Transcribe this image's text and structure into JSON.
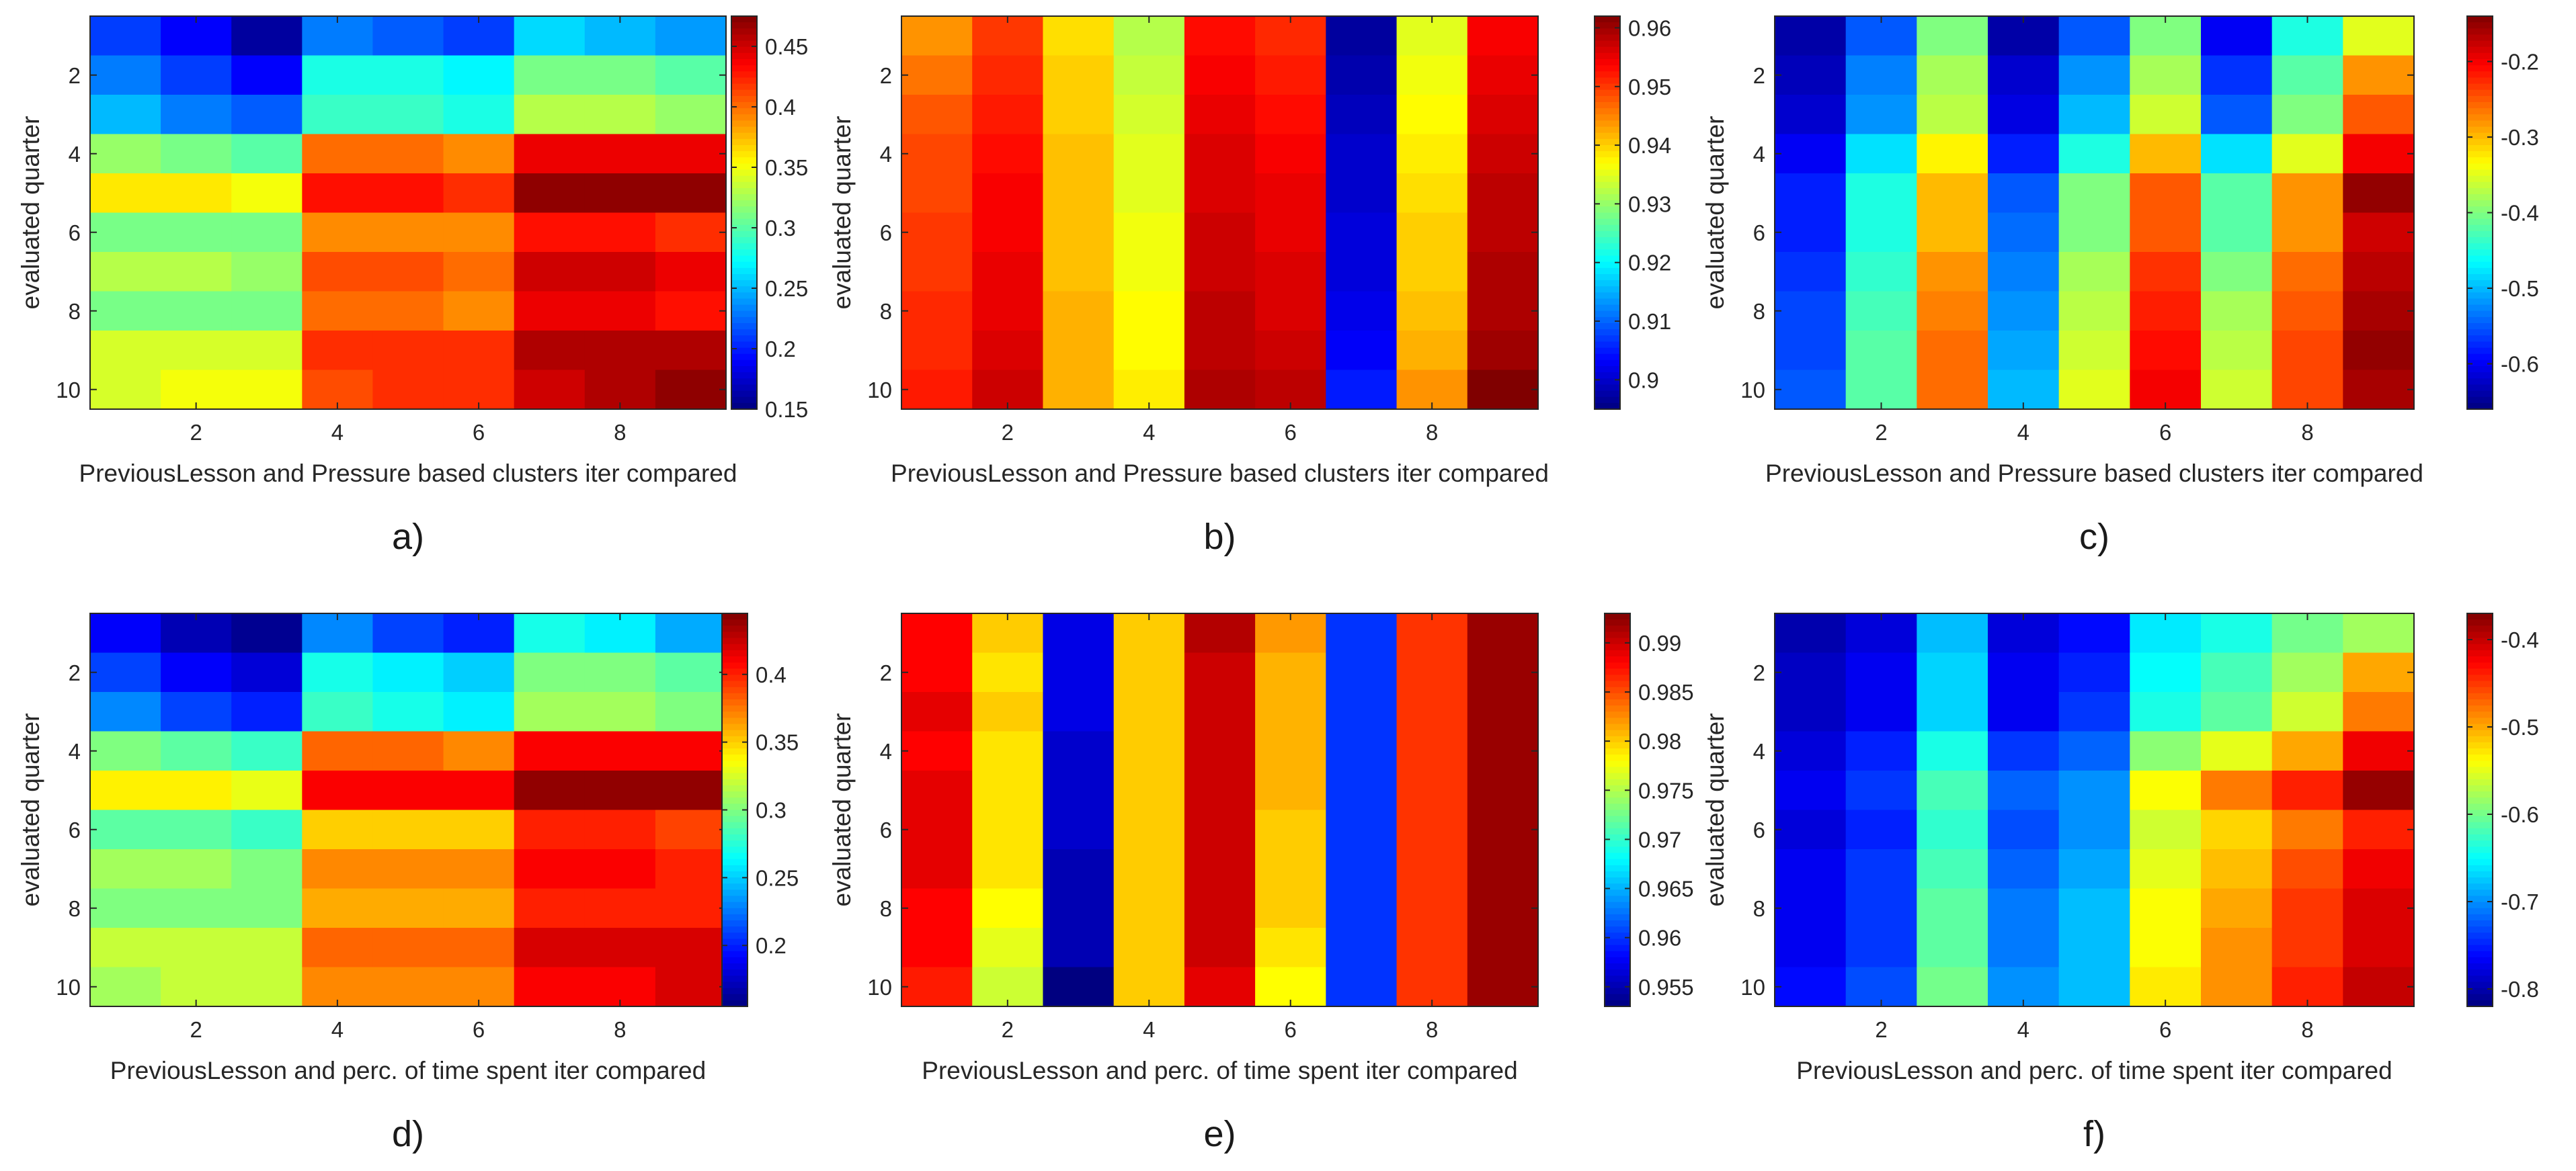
{
  "figure": {
    "title": ""
  },
  "chart_data": [
    {
      "panel_letter": "a)",
      "type": "heatmap",
      "xlabel": "PreviousLesson and Pressure based clusters iter compared",
      "ylabel": "evaluated quarter",
      "x_ticks": [
        "2",
        "4",
        "6",
        "8"
      ],
      "y_ticks": [
        "2",
        "4",
        "6",
        "8",
        "10"
      ],
      "colorbar": {
        "min": 0.15,
        "max": 0.475,
        "ticks": [
          "0.15",
          "0.2",
          "0.25",
          "0.3",
          "0.35",
          "0.4",
          "0.45"
        ]
      },
      "values": [
        [
          0.21,
          0.19,
          0.16,
          0.23,
          0.22,
          0.21,
          0.26,
          0.25,
          0.24
        ],
        [
          0.23,
          0.21,
          0.19,
          0.28,
          0.28,
          0.27,
          0.31,
          0.31,
          0.3
        ],
        [
          0.25,
          0.23,
          0.22,
          0.29,
          0.29,
          0.28,
          0.33,
          0.33,
          0.32
        ],
        [
          0.32,
          0.31,
          0.3,
          0.4,
          0.4,
          0.39,
          0.44,
          0.44,
          0.44
        ],
        [
          0.36,
          0.36,
          0.35,
          0.43,
          0.43,
          0.42,
          0.47,
          0.47,
          0.47
        ],
        [
          0.31,
          0.31,
          0.31,
          0.39,
          0.39,
          0.39,
          0.43,
          0.43,
          0.42
        ],
        [
          0.33,
          0.33,
          0.32,
          0.41,
          0.41,
          0.4,
          0.45,
          0.45,
          0.44
        ],
        [
          0.31,
          0.31,
          0.31,
          0.4,
          0.4,
          0.39,
          0.44,
          0.44,
          0.43
        ],
        [
          0.34,
          0.34,
          0.34,
          0.42,
          0.42,
          0.42,
          0.46,
          0.46,
          0.46
        ],
        [
          0.34,
          0.35,
          0.35,
          0.41,
          0.42,
          0.42,
          0.45,
          0.46,
          0.47
        ]
      ]
    },
    {
      "panel_letter": "b)",
      "type": "heatmap",
      "xlabel": "PreviousLesson and Pressure based clusters iter compared",
      "ylabel": "evaluated quarter",
      "x_ticks": [
        "2",
        "4",
        "6",
        "8"
      ],
      "y_ticks": [
        "2",
        "4",
        "6",
        "8",
        "10"
      ],
      "colorbar": {
        "min": 0.895,
        "max": 0.962,
        "ticks": [
          "0.9",
          "0.91",
          "0.92",
          "0.93",
          "0.94",
          "0.95",
          "0.96"
        ]
      },
      "values": [
        [
          0.944,
          0.95,
          0.939,
          0.932,
          0.953,
          0.951,
          0.897,
          0.935,
          0.954
        ],
        [
          0.946,
          0.951,
          0.94,
          0.933,
          0.954,
          0.952,
          0.898,
          0.936,
          0.955
        ],
        [
          0.948,
          0.952,
          0.94,
          0.934,
          0.955,
          0.953,
          0.899,
          0.937,
          0.956
        ],
        [
          0.949,
          0.953,
          0.941,
          0.935,
          0.956,
          0.954,
          0.9,
          0.938,
          0.957
        ],
        [
          0.949,
          0.954,
          0.941,
          0.935,
          0.956,
          0.955,
          0.9,
          0.939,
          0.958
        ],
        [
          0.95,
          0.954,
          0.941,
          0.936,
          0.957,
          0.955,
          0.901,
          0.94,
          0.958
        ],
        [
          0.95,
          0.955,
          0.941,
          0.936,
          0.957,
          0.956,
          0.901,
          0.94,
          0.959
        ],
        [
          0.951,
          0.955,
          0.942,
          0.937,
          0.958,
          0.956,
          0.902,
          0.941,
          0.959
        ],
        [
          0.951,
          0.956,
          0.942,
          0.937,
          0.958,
          0.957,
          0.903,
          0.942,
          0.96
        ],
        [
          0.952,
          0.957,
          0.942,
          0.938,
          0.959,
          0.958,
          0.905,
          0.944,
          0.962
        ]
      ]
    },
    {
      "panel_letter": "c)",
      "type": "heatmap",
      "xlabel": "PreviousLesson and Pressure based clusters iter compared",
      "ylabel": "evaluated quarter",
      "x_ticks": [
        "2",
        "4",
        "6",
        "8"
      ],
      "y_ticks": [
        "2",
        "4",
        "6",
        "8",
        "10"
      ],
      "colorbar": {
        "min": -0.66,
        "max": -0.14,
        "ticks": [
          "-0.6",
          "-0.5",
          "-0.4",
          "-0.3",
          "-0.2"
        ]
      },
      "values": [
        [
          -0.64,
          -0.55,
          -0.4,
          -0.64,
          -0.55,
          -0.4,
          -0.6,
          -0.45,
          -0.35
        ],
        [
          -0.63,
          -0.53,
          -0.38,
          -0.62,
          -0.52,
          -0.38,
          -0.57,
          -0.42,
          -0.28
        ],
        [
          -0.62,
          -0.52,
          -0.37,
          -0.61,
          -0.5,
          -0.36,
          -0.55,
          -0.4,
          -0.25
        ],
        [
          -0.6,
          -0.48,
          -0.33,
          -0.58,
          -0.45,
          -0.3,
          -0.48,
          -0.35,
          -0.2
        ],
        [
          -0.58,
          -0.45,
          -0.3,
          -0.55,
          -0.4,
          -0.25,
          -0.42,
          -0.28,
          -0.15
        ],
        [
          -0.58,
          -0.45,
          -0.3,
          -0.54,
          -0.4,
          -0.25,
          -0.42,
          -0.28,
          -0.18
        ],
        [
          -0.57,
          -0.44,
          -0.28,
          -0.53,
          -0.38,
          -0.23,
          -0.4,
          -0.26,
          -0.17
        ],
        [
          -0.56,
          -0.43,
          -0.27,
          -0.52,
          -0.37,
          -0.22,
          -0.38,
          -0.25,
          -0.16
        ],
        [
          -0.56,
          -0.42,
          -0.26,
          -0.51,
          -0.36,
          -0.21,
          -0.37,
          -0.24,
          -0.15
        ],
        [
          -0.55,
          -0.42,
          -0.26,
          -0.5,
          -0.35,
          -0.2,
          -0.36,
          -0.24,
          -0.16
        ]
      ]
    },
    {
      "panel_letter": "d)",
      "type": "heatmap",
      "xlabel": "PreviousLesson and perc. of time spent iter compared",
      "ylabel": "evaluated quarter",
      "x_ticks": [
        "2",
        "4",
        "6",
        "8"
      ],
      "y_ticks": [
        "2",
        "4",
        "6",
        "8",
        "10"
      ],
      "colorbar": {
        "min": 0.155,
        "max": 0.445,
        "ticks": [
          "0.2",
          "0.25",
          "0.3",
          "0.35",
          "0.4"
        ]
      },
      "values": [
        [
          0.19,
          0.17,
          0.16,
          0.23,
          0.21,
          0.2,
          0.27,
          0.26,
          0.24
        ],
        [
          0.21,
          0.19,
          0.18,
          0.27,
          0.26,
          0.25,
          0.3,
          0.3,
          0.29
        ],
        [
          0.23,
          0.21,
          0.2,
          0.28,
          0.27,
          0.26,
          0.31,
          0.31,
          0.3
        ],
        [
          0.3,
          0.29,
          0.28,
          0.38,
          0.38,
          0.37,
          0.41,
          0.41,
          0.41
        ],
        [
          0.34,
          0.34,
          0.33,
          0.41,
          0.41,
          0.41,
          0.44,
          0.44,
          0.44
        ],
        [
          0.29,
          0.29,
          0.28,
          0.35,
          0.35,
          0.35,
          0.4,
          0.4,
          0.39
        ],
        [
          0.31,
          0.31,
          0.3,
          0.37,
          0.37,
          0.37,
          0.41,
          0.41,
          0.4
        ],
        [
          0.3,
          0.3,
          0.3,
          0.36,
          0.36,
          0.36,
          0.4,
          0.4,
          0.4
        ],
        [
          0.32,
          0.32,
          0.32,
          0.38,
          0.38,
          0.38,
          0.42,
          0.42,
          0.42
        ],
        [
          0.31,
          0.32,
          0.32,
          0.37,
          0.37,
          0.37,
          0.41,
          0.41,
          0.42
        ]
      ]
    },
    {
      "panel_letter": "e)",
      "type": "heatmap",
      "xlabel": "PreviousLesson and perc. of time spent iter compared",
      "ylabel": "evaluated quarter",
      "x_ticks": [
        "2",
        "4",
        "6",
        "8"
      ],
      "y_ticks": [
        "2",
        "4",
        "6",
        "8",
        "10"
      ],
      "colorbar": {
        "min": 0.953,
        "max": 0.993,
        "ticks": [
          "0.955",
          "0.96",
          "0.965",
          "0.97",
          "0.975",
          "0.98",
          "0.985",
          "0.99"
        ]
      },
      "values": [
        [
          0.988,
          0.98,
          0.957,
          0.98,
          0.991,
          0.982,
          0.96,
          0.986,
          0.992
        ],
        [
          0.988,
          0.979,
          0.957,
          0.98,
          0.99,
          0.981,
          0.96,
          0.986,
          0.992
        ],
        [
          0.989,
          0.98,
          0.957,
          0.98,
          0.99,
          0.981,
          0.96,
          0.986,
          0.992
        ],
        [
          0.988,
          0.979,
          0.956,
          0.98,
          0.99,
          0.981,
          0.96,
          0.986,
          0.992
        ],
        [
          0.989,
          0.979,
          0.956,
          0.98,
          0.99,
          0.981,
          0.96,
          0.986,
          0.992
        ],
        [
          0.989,
          0.979,
          0.956,
          0.98,
          0.99,
          0.98,
          0.96,
          0.986,
          0.992
        ],
        [
          0.989,
          0.979,
          0.955,
          0.98,
          0.99,
          0.98,
          0.96,
          0.986,
          0.992
        ],
        [
          0.988,
          0.978,
          0.955,
          0.98,
          0.99,
          0.98,
          0.96,
          0.986,
          0.992
        ],
        [
          0.988,
          0.977,
          0.955,
          0.98,
          0.99,
          0.979,
          0.96,
          0.986,
          0.992
        ],
        [
          0.987,
          0.976,
          0.953,
          0.98,
          0.989,
          0.978,
          0.96,
          0.986,
          0.992
        ]
      ]
    },
    {
      "panel_letter": "f)",
      "type": "heatmap",
      "xlabel": "PreviousLesson and perc. of time spent iter compared",
      "ylabel": "evaluated quarter",
      "x_ticks": [
        "2",
        "4",
        "6",
        "8"
      ],
      "y_ticks": [
        "2",
        "4",
        "6",
        "8",
        "10"
      ],
      "colorbar": {
        "min": -0.82,
        "max": -0.37,
        "ticks": [
          "-0.8",
          "-0.7",
          "-0.6",
          "-0.5",
          "-0.4"
        ]
      },
      "values": [
        [
          -0.8,
          -0.78,
          -0.68,
          -0.78,
          -0.76,
          -0.66,
          -0.64,
          -0.6,
          -0.58
        ],
        [
          -0.79,
          -0.77,
          -0.67,
          -0.77,
          -0.75,
          -0.65,
          -0.62,
          -0.58,
          -0.5
        ],
        [
          -0.79,
          -0.77,
          -0.67,
          -0.77,
          -0.74,
          -0.64,
          -0.61,
          -0.56,
          -0.48
        ],
        [
          -0.78,
          -0.75,
          -0.64,
          -0.74,
          -0.72,
          -0.59,
          -0.55,
          -0.5,
          -0.42
        ],
        [
          -0.77,
          -0.74,
          -0.62,
          -0.72,
          -0.7,
          -0.54,
          -0.48,
          -0.44,
          -0.38
        ],
        [
          -0.78,
          -0.75,
          -0.63,
          -0.73,
          -0.7,
          -0.56,
          -0.52,
          -0.48,
          -0.44
        ],
        [
          -0.77,
          -0.74,
          -0.62,
          -0.72,
          -0.69,
          -0.55,
          -0.51,
          -0.46,
          -0.42
        ],
        [
          -0.77,
          -0.74,
          -0.61,
          -0.71,
          -0.68,
          -0.54,
          -0.5,
          -0.45,
          -0.41
        ],
        [
          -0.77,
          -0.74,
          -0.61,
          -0.71,
          -0.68,
          -0.54,
          -0.49,
          -0.45,
          -0.41
        ],
        [
          -0.76,
          -0.73,
          -0.6,
          -0.7,
          -0.68,
          -0.53,
          -0.49,
          -0.44,
          -0.4
        ]
      ]
    }
  ]
}
